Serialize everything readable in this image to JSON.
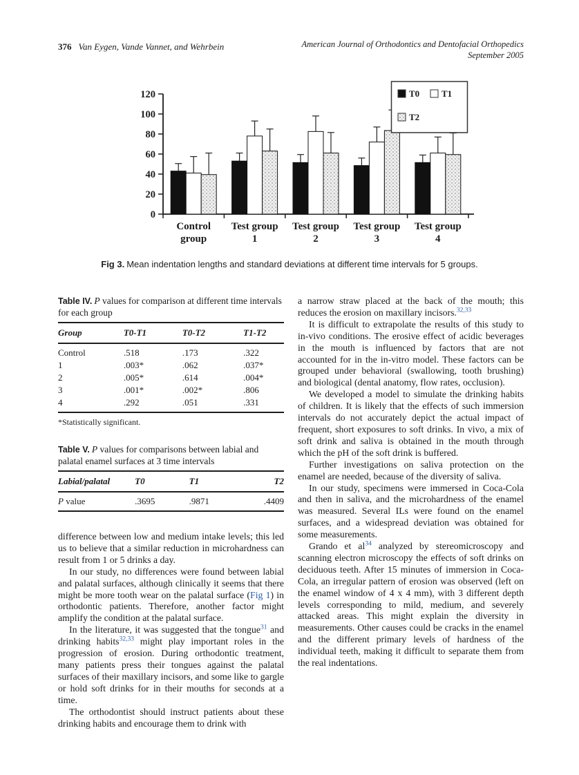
{
  "colors": {
    "link_blue": "#2b5ca8",
    "text": "#1c1c1c"
  },
  "header": {
    "page_number": "376",
    "running_authors": "Van Eygen, Vande Vannet, and Wehrbein",
    "journal_name": "American Journal of Orthodontics and Dentofacial Orthopedics",
    "issue_date": "September 2005"
  },
  "figure": {
    "caption_label": "Fig 3.",
    "caption_text": "Mean indentation lengths and standard deviations at different time intervals for 5 groups."
  },
  "chart_data": {
    "type": "bar",
    "title": "",
    "xlabel": "",
    "ylabel": "",
    "categories": [
      "Control group",
      "Test group 1",
      "Test group 2",
      "Test group 3",
      "Test group 4"
    ],
    "category_line1": [
      "Control",
      "Test group",
      "Test group",
      "Test group",
      "Test group"
    ],
    "category_line2": [
      "group",
      "1",
      "2",
      "3",
      "4"
    ],
    "series": [
      {
        "name": "T0",
        "fill": "#111111",
        "values": [
          43,
          53,
          51.5,
          48.5,
          51.5
        ],
        "sd_upper": [
          7.5,
          8,
          8,
          7.5,
          7.5
        ]
      },
      {
        "name": "T1",
        "fill": "#ffffff",
        "values": [
          41,
          78,
          82.5,
          72,
          61
        ],
        "sd_upper": [
          16.5,
          15,
          15.5,
          15,
          16
        ]
      },
      {
        "name": "T2",
        "fill": "pattern-gray",
        "values": [
          39.5,
          63,
          61,
          83.5,
          59.5
        ],
        "sd_upper": [
          21.5,
          22,
          20.5,
          20.5,
          21.5
        ]
      }
    ],
    "ylim": [
      0,
      120
    ],
    "yticks": [
      0,
      20,
      40,
      60,
      80,
      100,
      120
    ],
    "grid": false,
    "legend_position": "top-right"
  },
  "table4": {
    "label": "Table IV.",
    "title_segments": [
      {
        "t": "P",
        "k": "i"
      },
      {
        "t": " values for comparison at different time intervals for each group"
      }
    ],
    "columns": [
      "Group",
      "T0-T1",
      "T0-T2",
      "T1-T2"
    ],
    "rows": [
      [
        "Control",
        ".518",
        ".173",
        ".322"
      ],
      [
        "1",
        ".003*",
        ".062",
        ".037*"
      ],
      [
        "2",
        ".005*",
        ".614",
        ".004*"
      ],
      [
        "3",
        ".001*",
        ".002*",
        ".806"
      ],
      [
        "4",
        ".292",
        ".051",
        ".331"
      ]
    ],
    "footnote": "*Statistically significant."
  },
  "table5": {
    "label": "Table V.",
    "title_segments": [
      {
        "t": "P",
        "k": "i"
      },
      {
        "t": " values for comparisons between labial and palatal enamel surfaces at 3 time intervals"
      }
    ],
    "columns": [
      "Labial/palatal",
      "T0",
      "T1",
      "T2"
    ],
    "rows": [
      [
        [
          {
            "t": "P",
            "k": "i"
          },
          {
            "t": " value"
          }
        ],
        ".3695",
        ".9871",
        ".4409"
      ]
    ]
  },
  "left_column": {
    "paragraphs": [
      {
        "indent": false,
        "segments": [
          {
            "t": "difference between low and medium intake levels; this led us to believe that a similar reduction in microhardness can result from 1 or 5 drinks a day."
          }
        ]
      },
      {
        "indent": true,
        "segments": [
          {
            "t": "In our study, no differences were found between labial and palatal surfaces, although clinically it seems that there might be more tooth wear on the palatal surface ("
          },
          {
            "t": "Fig 1",
            "k": "link"
          },
          {
            "t": ") in orthodontic patients. Therefore, another factor might amplify the condition at the palatal surface."
          }
        ]
      },
      {
        "indent": true,
        "segments": [
          {
            "t": "In the literature, it was suggested that the tongue"
          },
          {
            "t": "31",
            "k": "sup"
          },
          {
            "t": " and drinking habits"
          },
          {
            "t": "32,33",
            "k": "sup"
          },
          {
            "t": " might play important roles in the progression of erosion. During orthodontic treatment, many patients press their tongues against the palatal surfaces of their maxillary incisors, and some like to gargle or hold soft drinks for in their mouths for seconds at a time."
          }
        ]
      },
      {
        "indent": true,
        "segments": [
          {
            "t": "The orthodontist should instruct patients about these drinking habits and encourage them to drink with"
          }
        ]
      }
    ]
  },
  "right_column": {
    "paragraphs": [
      {
        "indent": false,
        "segments": [
          {
            "t": "a narrow straw placed at the back of the mouth; this reduces the erosion on maxillary incisors."
          },
          {
            "t": "32,33",
            "k": "sup"
          }
        ]
      },
      {
        "indent": true,
        "segments": [
          {
            "t": "It is difficult to extrapolate the results of this study to in-vivo conditions. The erosive effect of acidic beverages in the mouth is influenced by factors that are not accounted for in the in-vitro model. These factors can be grouped under behavioral (swallowing, tooth brushing) and biological (dental anatomy, flow rates, occlusion)."
          }
        ]
      },
      {
        "indent": true,
        "segments": [
          {
            "t": "We developed a model to simulate the drinking habits of children. It is likely that the effects of such immersion intervals do not accurately depict the actual impact of frequent, short exposures to soft drinks. In vivo, a mix of soft drink and saliva is obtained in the mouth through which the pH of the soft drink is buffered."
          }
        ]
      },
      {
        "indent": true,
        "segments": [
          {
            "t": "Further investigations on saliva protection on the enamel are needed, because of the diversity of saliva."
          }
        ]
      },
      {
        "indent": true,
        "segments": [
          {
            "t": "In our study, specimens were immersed in Coca-Cola and then in saliva, and the microhardness of the enamel was measured. Several ILs were found on the enamel surfaces, and a widespread deviation was obtained for some measurements."
          }
        ]
      },
      {
        "indent": true,
        "segments": [
          {
            "t": "Grando et al"
          },
          {
            "t": "34",
            "k": "sup"
          },
          {
            "t": " analyzed by stereomicroscopy and scanning electron microscopy the effects of soft drinks on deciduous teeth. After 15 minutes of immersion in Coca-Cola, an irregular pattern of erosion was observed (left on the enamel window of 4 x 4 mm), with 3 different depth levels corresponding to mild, medium, and severely attacked areas. This might explain the diversity in measurements. Other causes could be cracks in the enamel and the different primary levels of hardness of the individual teeth, making it difficult to separate them from the real indentations."
          }
        ]
      }
    ]
  }
}
